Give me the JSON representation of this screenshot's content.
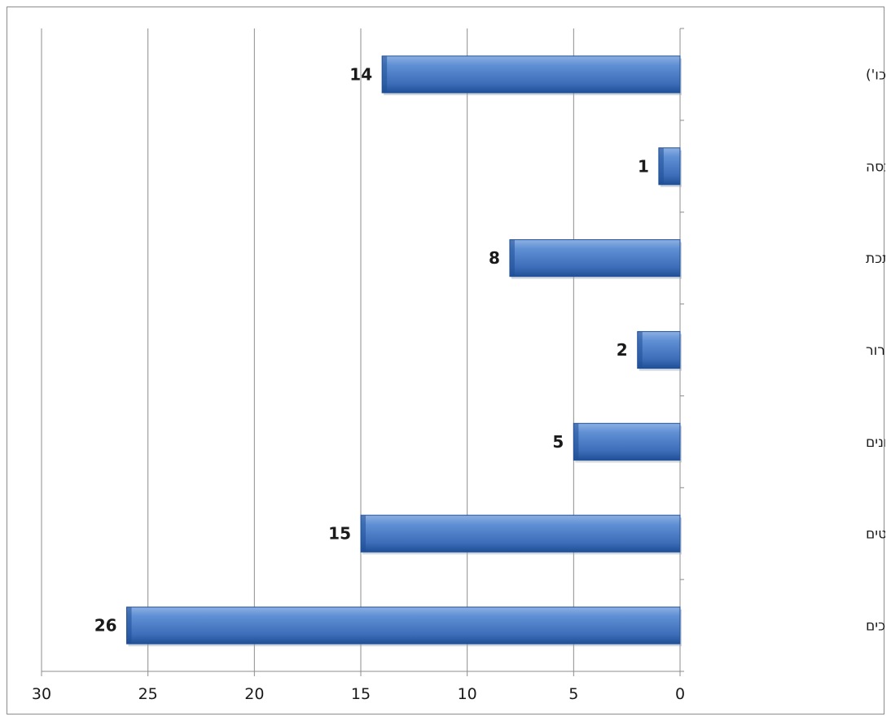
{
  "chart_data": {
    "type": "bar",
    "orientation": "horizontal",
    "x_axis_reversed": true,
    "categories": [
      "שונות (הסעות, הרכבות וכו')",
      "מכבסה",
      "מתכת",
      "קירור",
      "חניונים",
      "ייצור רהיטים",
      "טיפול ברכב/מוסכים"
    ],
    "values": [
      14,
      1,
      8,
      2,
      5,
      15,
      26
    ],
    "xlim": [
      0,
      30
    ],
    "xticks": [
      0,
      5,
      10,
      15,
      20,
      25,
      30
    ],
    "grid": "vertical",
    "data_labels": true,
    "title": "",
    "xlabel": "",
    "ylabel": "",
    "colors": {
      "bar_main": "#4a7ac2",
      "bar_dark": "#1f4f96",
      "bar_light": "#8db0e3",
      "grid": "#8c8c8c",
      "text": "#1a1a1a"
    }
  }
}
